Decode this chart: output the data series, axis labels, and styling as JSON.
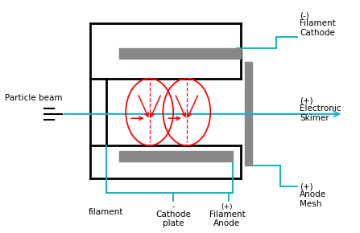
{
  "bg_color": "#ffffff",
  "line_color": "#000000",
  "cyan_color": "#00b0b0",
  "red_color": "#ff0000",
  "gray_color": "#888888",
  "arrow_color": "#1ab0d8",
  "figsize": [
    4.47,
    2.9
  ],
  "dpi": 100,
  "labels": {
    "particle_beam": "Particle beam",
    "filament_cathode_sign": "(-)",
    "filament_cathode": "Filament\nCathode",
    "electronic_skimer_sign": "(+)",
    "electronic_skimer": "Electronic\nSkimer",
    "anode_mesh_sign": "(+)",
    "anode_mesh": "Anode\nMesh",
    "filament": "filament",
    "cathode_plate_sign": "-",
    "cathode_plate": "Cathode\nplate",
    "filament_anode_sign": "(+)",
    "filament_anode": "Filament\nAnode"
  }
}
